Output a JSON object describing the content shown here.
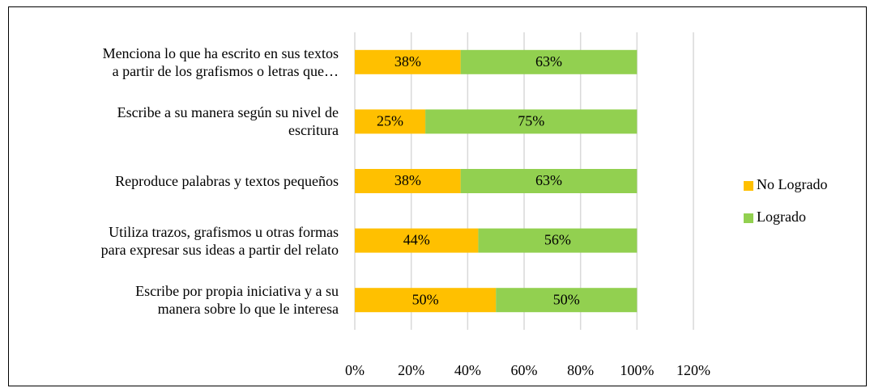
{
  "chart_data": {
    "type": "stacked_barh",
    "categories": [
      "Menciona lo que ha escrito en sus textos\na partir de los grafismos o letras que…",
      "Escribe a su manera según su nivel de\nescritura",
      "Reproduce palabras y textos pequeños",
      "Utiliza trazos, grafismos u otras formas\npara expresar sus ideas a partir del relato",
      "Escribe por propia iniciativa y a su\nmanera sobre lo que le interesa"
    ],
    "series": [
      {
        "name": "No Logrado",
        "color": "#ffc000",
        "values": [
          37.5,
          25,
          37.5,
          43.75,
          50
        ],
        "value_labels": [
          "38%",
          "25%",
          "38%",
          "44%",
          "50%"
        ]
      },
      {
        "name": "Logrado",
        "color": "#92d050",
        "values": [
          62.5,
          75,
          62.5,
          56.25,
          50
        ],
        "value_labels": [
          "63%",
          "75%",
          "63%",
          "56%",
          "50%"
        ]
      }
    ],
    "xlim": [
      0,
      120
    ],
    "xticks": [
      {
        "value": 0,
        "label": "0%"
      },
      {
        "value": 20,
        "label": "20%"
      },
      {
        "value": 40,
        "label": "40%"
      },
      {
        "value": 60,
        "label": "60%"
      },
      {
        "value": 80,
        "label": "80%"
      },
      {
        "value": 100,
        "label": "100%"
      },
      {
        "value": 120,
        "label": "120%"
      }
    ],
    "grid": true,
    "legend": "right"
  }
}
